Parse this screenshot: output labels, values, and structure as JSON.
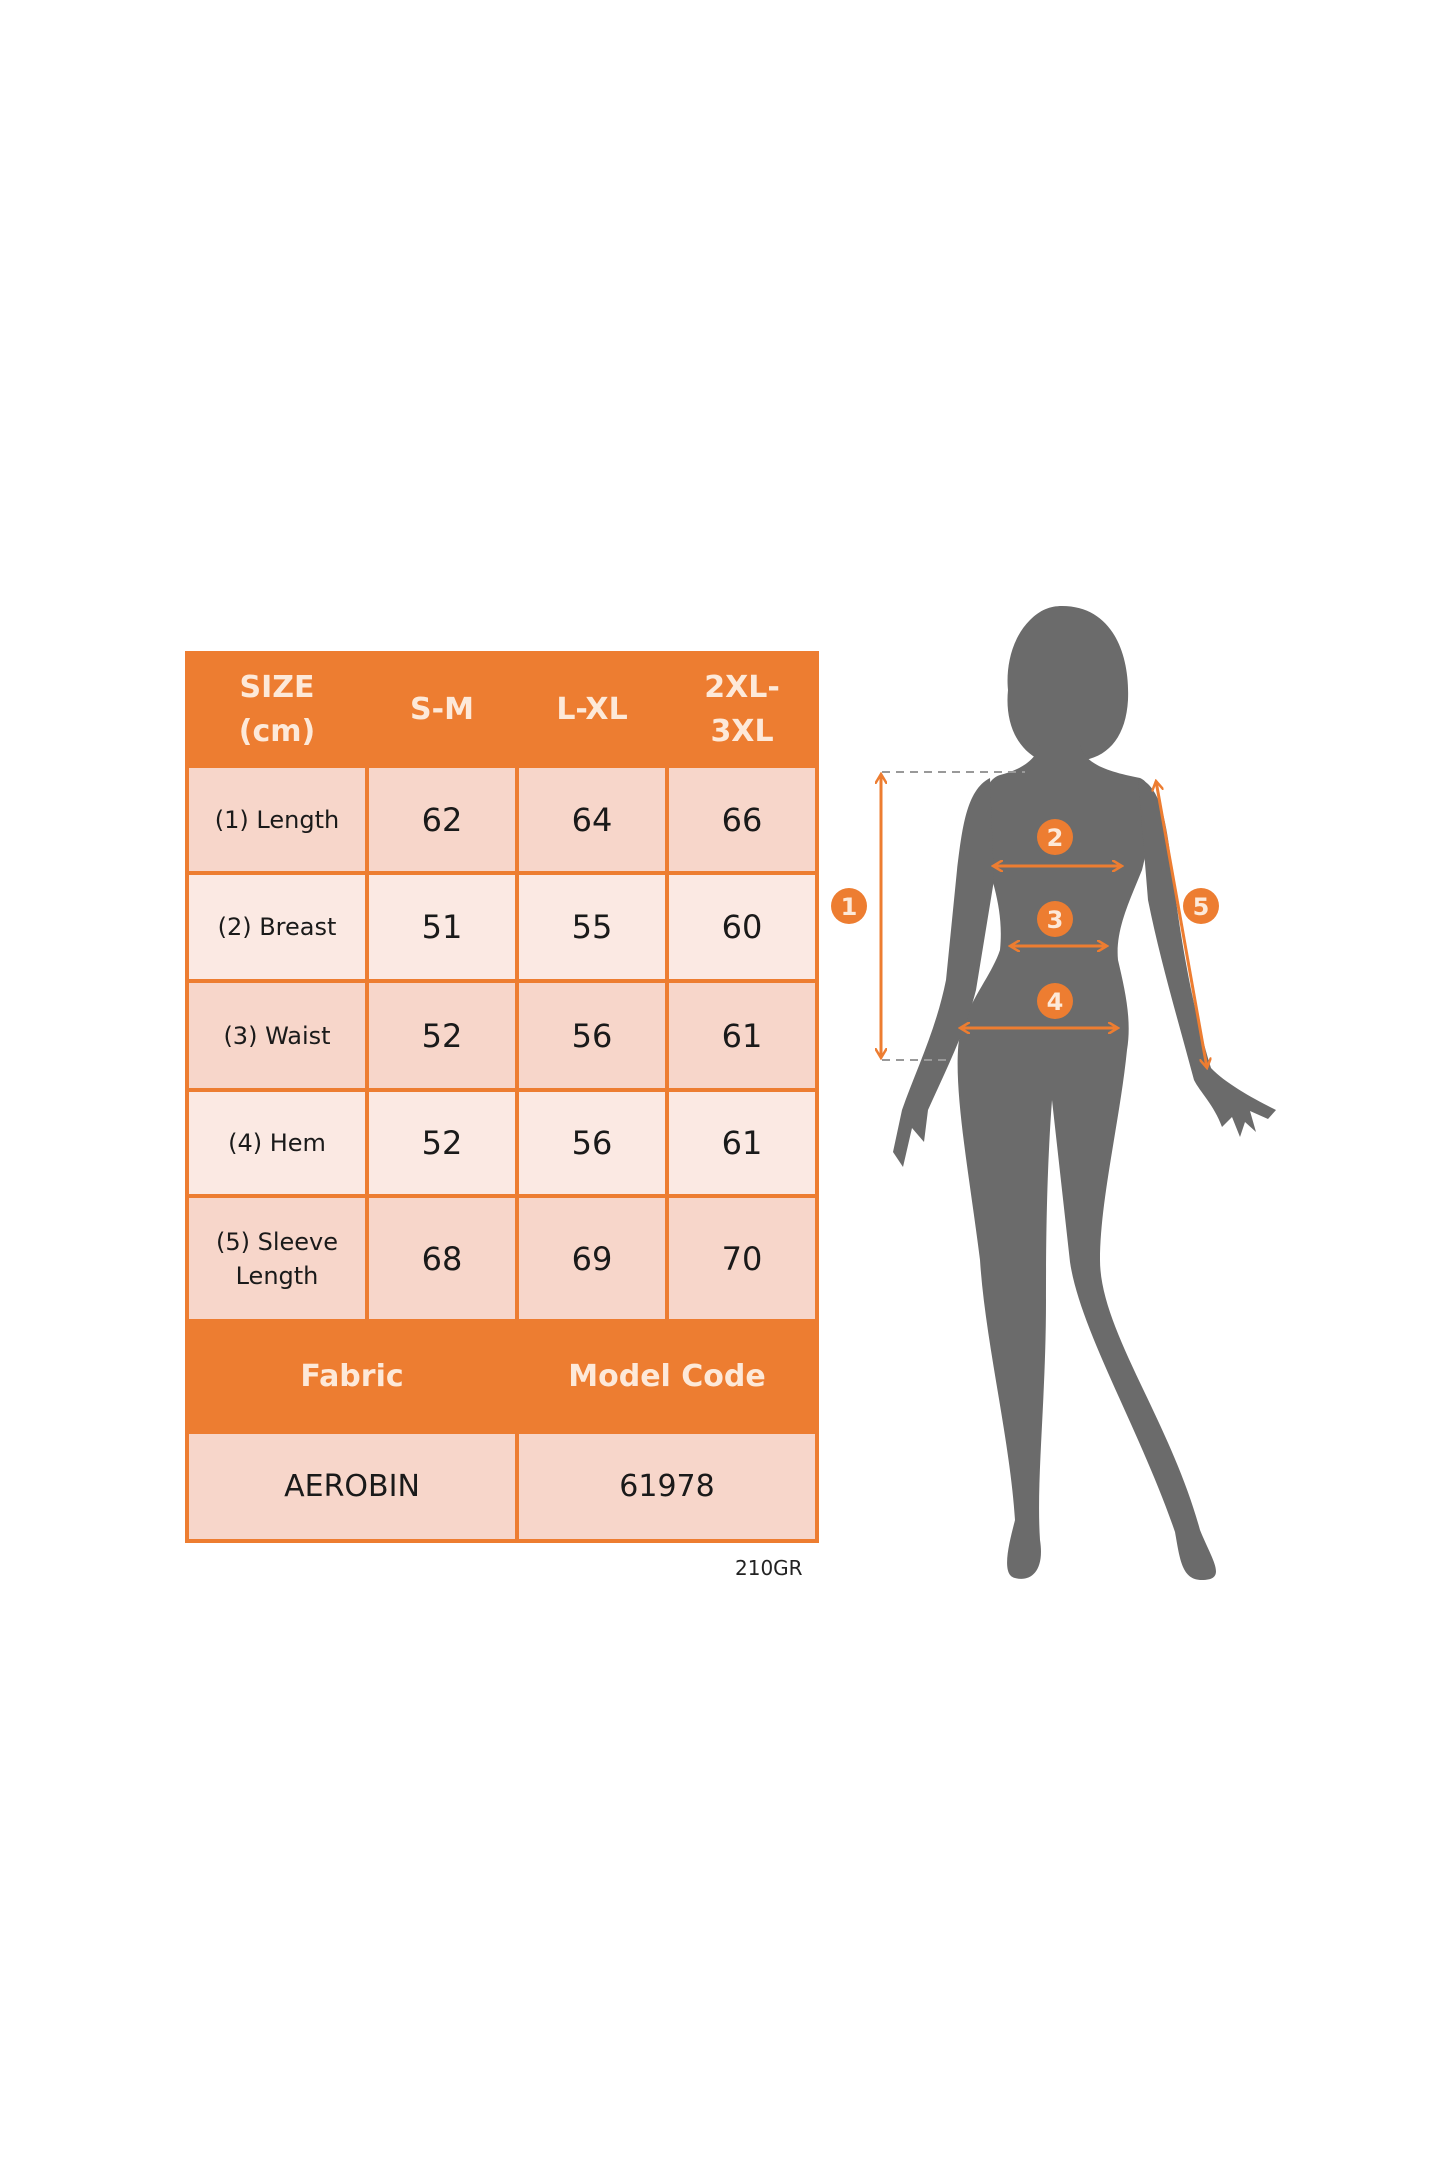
{
  "colors": {
    "accent": "#ED7D31",
    "header_text": "#fde9d9",
    "cell_dark": "#f7d6ca",
    "cell_light": "#fbe9e3",
    "silhouette": "#6b6b6b"
  },
  "table": {
    "header": {
      "size_label_line1": "SIZE",
      "size_label_line2": "(cm)",
      "sizes": [
        "S-M",
        "L-XL",
        "2XL-3XL"
      ],
      "size3_line1": "2XL-",
      "size3_line2": "3XL"
    },
    "rows": [
      {
        "label": "(1) Length",
        "values": [
          "62",
          "64",
          "66"
        ]
      },
      {
        "label": "(2) Breast",
        "values": [
          "51",
          "55",
          "60"
        ]
      },
      {
        "label": "(3) Waist",
        "values": [
          "52",
          "56",
          "61"
        ]
      },
      {
        "label": "(4) Hem",
        "values": [
          "52",
          "56",
          "61"
        ]
      },
      {
        "label_line1": "(5) Sleeve",
        "label_line2": "Length",
        "values": [
          "68",
          "69",
          "70"
        ]
      }
    ],
    "info_header": {
      "fabric": "Fabric",
      "model_code": "Model Code"
    },
    "info_values": {
      "fabric": "AEROBIN",
      "model_code": "61978"
    }
  },
  "footer_code": "210GR",
  "figure": {
    "markers": [
      "1",
      "2",
      "3",
      "4",
      "5"
    ],
    "icon": "female-silhouette-icon"
  }
}
